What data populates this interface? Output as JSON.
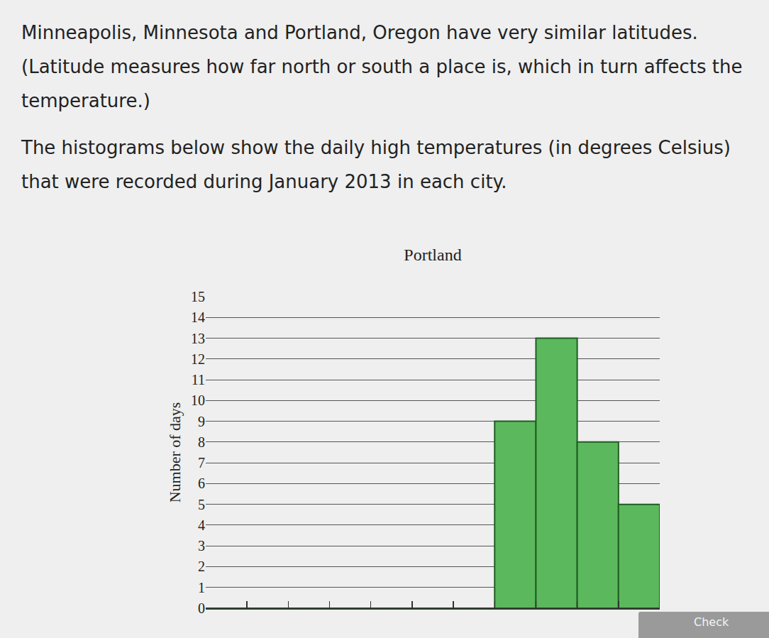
{
  "page": {
    "paragraphs": [
      "Minneapolis, Minnesota and Portland, Oregon have very similar latitudes. (Latitude measures how far north or south a place is, which in turn affects the temperature.)",
      "The histograms below show the daily high temperatures (in degrees Celsius) that were recorded during January 2013 in each city."
    ],
    "button": "Check"
  },
  "chart_data": {
    "type": "histogram",
    "title": "Portland",
    "y_label": "Number of days",
    "bins": [
      -21,
      -18,
      -15,
      -12,
      -9,
      -6,
      -3,
      0,
      3,
      6,
      9,
      12
    ],
    "values": [
      0,
      0,
      0,
      0,
      0,
      0,
      0,
      9,
      13,
      8,
      5
    ],
    "color": "#5cb85c",
    "xlim": [
      -21,
      12
    ],
    "xticks": [
      -21,
      -18,
      -15,
      -12,
      -9,
      -6,
      -3,
      0,
      3,
      6,
      9,
      12
    ],
    "ylim": [
      0,
      15
    ],
    "yticks": [
      0,
      1,
      2,
      3,
      4,
      5,
      6,
      7,
      8,
      9,
      10,
      11,
      12,
      13,
      14,
      15
    ],
    "grid": true,
    "tick_labels": "y"
  }
}
